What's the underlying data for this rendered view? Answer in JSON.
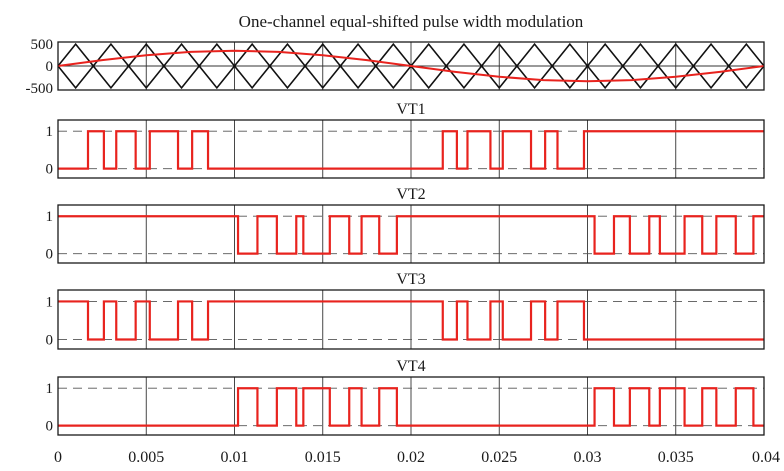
{
  "chart_data": [
    {
      "type": "line",
      "title": "One-channel equal-shifted pulse width modulation",
      "xlabel": "",
      "ylabel": "",
      "xlim": [
        0,
        0.04
      ],
      "ylim": [
        -550,
        550
      ],
      "yticks": [
        500,
        0,
        -500
      ],
      "ytick_labels": [
        "500",
        "0",
        "-500"
      ],
      "grid": true,
      "series": [
        {
          "color": "#111111",
          "description_shape": "triangle carrier",
          "x": [
            0,
            0.001,
            0.002,
            0.003,
            0.004,
            0.005,
            0.006,
            0.007,
            0.008,
            0.009,
            0.01,
            0.011,
            0.012,
            0.013,
            0.014,
            0.015,
            0.016,
            0.017,
            0.018,
            0.019,
            0.02,
            0.021,
            0.022,
            0.023,
            0.024,
            0.025,
            0.026,
            0.027,
            0.028,
            0.029,
            0.03,
            0.031,
            0.032,
            0.033,
            0.034,
            0.035,
            0.036,
            0.037,
            0.038,
            0.039,
            0.04
          ],
          "values": [
            0,
            500,
            0,
            500,
            0,
            500,
            0,
            500,
            0,
            500,
            0,
            500,
            0,
            500,
            0,
            500,
            0,
            500,
            0,
            500,
            0,
            500,
            0,
            500,
            0,
            500,
            0,
            500,
            0,
            500,
            0,
            500,
            0,
            500,
            0,
            500,
            0,
            500,
            0,
            500,
            0
          ]
        },
        {
          "color": "#111111",
          "x": [
            0,
            0.001,
            0.002,
            0.003,
            0.004,
            0.005,
            0.006,
            0.007,
            0.008,
            0.009,
            0.01,
            0.011,
            0.012,
            0.013,
            0.014,
            0.015,
            0.016,
            0.017,
            0.018,
            0.019,
            0.02,
            0.021,
            0.022,
            0.023,
            0.024,
            0.025,
            0.026,
            0.027,
            0.028,
            0.029,
            0.03,
            0.031,
            0.032,
            0.033,
            0.034,
            0.035,
            0.036,
            0.037,
            0.038,
            0.039,
            0.04
          ],
          "values": [
            0,
            -500,
            0,
            -500,
            0,
            -500,
            0,
            -500,
            0,
            -500,
            0,
            -500,
            0,
            -500,
            0,
            -500,
            0,
            -500,
            0,
            -500,
            0,
            -500,
            0,
            -500,
            0,
            -500,
            0,
            -500,
            0,
            -500,
            0,
            -500,
            0,
            -500,
            0,
            -500,
            0,
            -500,
            0,
            -500,
            0
          ]
        },
        {
          "color": "#e8231e",
          "x": [
            0,
            0.0025,
            0.005,
            0.0075,
            0.01,
            0.0125,
            0.015,
            0.0175,
            0.02,
            0.0225,
            0.025,
            0.0275,
            0.03,
            0.0325,
            0.035,
            0.0375,
            0.04
          ],
          "values": [
            0,
            134,
            247,
            323,
            350,
            323,
            247,
            134,
            0,
            -134,
            -247,
            -323,
            -350,
            -323,
            -247,
            -134,
            0
          ]
        }
      ]
    },
    {
      "type": "line",
      "title": "VT1",
      "xlim": [
        0,
        0.04
      ],
      "ylim": [
        -0.25,
        1.3
      ],
      "yticks": [
        1,
        0
      ],
      "ytick_labels": [
        "1",
        "0"
      ],
      "color": "#e8231e",
      "step": true,
      "x": [
        0,
        0.0017,
        0.0017,
        0.0026,
        0.0026,
        0.0033,
        0.0033,
        0.0044,
        0.0044,
        0.0052,
        0.0052,
        0.0068,
        0.0068,
        0.0076,
        0.0076,
        0.0085,
        0.0085,
        0.0218,
        0.0218,
        0.0226,
        0.0226,
        0.0232,
        0.0232,
        0.0245,
        0.0245,
        0.0252,
        0.0252,
        0.0268,
        0.0268,
        0.0276,
        0.0276,
        0.0283,
        0.0283,
        0.0298,
        0.0298,
        0.04
      ],
      "values": [
        0,
        0,
        1,
        1,
        0,
        0,
        1,
        1,
        0,
        0,
        1,
        1,
        0,
        0,
        1,
        1,
        0,
        0,
        1,
        1,
        0,
        0,
        1,
        1,
        0,
        0,
        1,
        1,
        0,
        0,
        1,
        1,
        0,
        0,
        1,
        1
      ]
    },
    {
      "type": "line",
      "title": "VT2",
      "xlim": [
        0,
        0.04
      ],
      "ylim": [
        -0.25,
        1.3
      ],
      "yticks": [
        1,
        0
      ],
      "ytick_labels": [
        "1",
        "0"
      ],
      "color": "#e8231e",
      "step": true,
      "x": [
        0,
        0.0102,
        0.0102,
        0.0113,
        0.0113,
        0.0124,
        0.0124,
        0.0135,
        0.0135,
        0.0139,
        0.0139,
        0.0154,
        0.0154,
        0.0165,
        0.0165,
        0.0172,
        0.0172,
        0.0182,
        0.0182,
        0.0192,
        0.0192,
        0.0304,
        0.0304,
        0.0315,
        0.0315,
        0.0324,
        0.0324,
        0.0335,
        0.0335,
        0.0341,
        0.0341,
        0.0355,
        0.0355,
        0.0365,
        0.0365,
        0.0373,
        0.0373,
        0.0384,
        0.0384,
        0.0394,
        0.0394,
        0.04
      ],
      "values": [
        1,
        1,
        0,
        0,
        1,
        1,
        0,
        0,
        1,
        1,
        0,
        0,
        1,
        1,
        0,
        0,
        1,
        1,
        0,
        0,
        1,
        1,
        0,
        0,
        1,
        1,
        0,
        0,
        1,
        1,
        0,
        0,
        1,
        1,
        0,
        0,
        1,
        1,
        0,
        0,
        1,
        1
      ]
    },
    {
      "type": "line",
      "title": "VT3",
      "xlim": [
        0,
        0.04
      ],
      "ylim": [
        -0.25,
        1.3
      ],
      "yticks": [
        1,
        0
      ],
      "ytick_labels": [
        "1",
        "0"
      ],
      "color": "#e8231e",
      "step": true,
      "x": [
        0,
        0.0017,
        0.0017,
        0.0026,
        0.0026,
        0.0033,
        0.0033,
        0.0044,
        0.0044,
        0.0052,
        0.0052,
        0.0068,
        0.0068,
        0.0076,
        0.0076,
        0.0085,
        0.0085,
        0.0218,
        0.0218,
        0.0226,
        0.0226,
        0.0232,
        0.0232,
        0.0245,
        0.0245,
        0.0252,
        0.0252,
        0.0268,
        0.0268,
        0.0276,
        0.0276,
        0.0283,
        0.0283,
        0.0298,
        0.0298,
        0.04
      ],
      "values": [
        1,
        1,
        0,
        0,
        1,
        1,
        0,
        0,
        1,
        1,
        0,
        0,
        1,
        1,
        0,
        0,
        1,
        1,
        0,
        0,
        1,
        1,
        0,
        0,
        1,
        1,
        0,
        0,
        1,
        1,
        0,
        0,
        1,
        1,
        0,
        0
      ]
    },
    {
      "type": "line",
      "title": "VT4",
      "xlim": [
        0,
        0.04
      ],
      "ylim": [
        -0.25,
        1.3
      ],
      "yticks": [
        1,
        0
      ],
      "ytick_labels": [
        "1",
        "0"
      ],
      "color": "#e8231e",
      "step": true,
      "x": [
        0,
        0.0102,
        0.0102,
        0.0113,
        0.0113,
        0.0124,
        0.0124,
        0.0135,
        0.0135,
        0.0139,
        0.0139,
        0.0154,
        0.0154,
        0.0165,
        0.0165,
        0.0172,
        0.0172,
        0.0182,
        0.0182,
        0.0192,
        0.0192,
        0.0304,
        0.0304,
        0.0315,
        0.0315,
        0.0324,
        0.0324,
        0.0335,
        0.0335,
        0.0341,
        0.0341,
        0.0355,
        0.0355,
        0.0365,
        0.0365,
        0.0373,
        0.0373,
        0.0384,
        0.0384,
        0.0394,
        0.0394,
        0.04
      ],
      "values": [
        0,
        0,
        1,
        1,
        0,
        0,
        1,
        1,
        0,
        0,
        1,
        1,
        0,
        0,
        1,
        1,
        0,
        0,
        1,
        1,
        0,
        0,
        1,
        1,
        0,
        0,
        1,
        1,
        0,
        0,
        1,
        1,
        0,
        0,
        1,
        1,
        0,
        0,
        1,
        1,
        0,
        0
      ]
    }
  ],
  "x_axis": {
    "ticks": [
      0,
      0.005,
      0.01,
      0.015,
      0.02,
      0.025,
      0.03,
      0.035,
      0.04
    ],
    "tick_labels": [
      "0",
      "0.005",
      "0.01",
      "0.015",
      "0.02",
      "0.025",
      "0.03",
      "0.035",
      "0.04"
    ]
  },
  "colors": {
    "signal": "#e8231e",
    "carrier": "#111111",
    "grid": "#333333",
    "dashed_reference": "#555555"
  }
}
